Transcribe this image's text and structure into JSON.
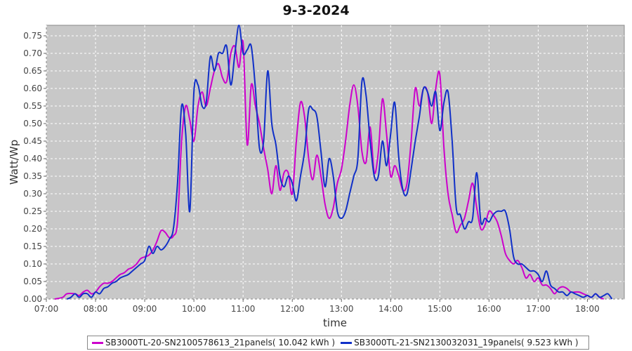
{
  "chart_data": {
    "type": "line",
    "title": "9-3-2024",
    "xlabel": "time",
    "ylabel": "Watt/Wp",
    "xlim": [
      "07:00",
      "18:45"
    ],
    "ylim": [
      0,
      0.78
    ],
    "x_ticks": [
      "07:00",
      "08:00",
      "09:00",
      "10:00",
      "11:00",
      "12:00",
      "13:00",
      "14:00",
      "15:00",
      "16:00",
      "17:00",
      "18:00"
    ],
    "y_ticks": [
      "0.00",
      "0.05",
      "0.10",
      "0.15",
      "0.20",
      "0.25",
      "0.30",
      "0.35",
      "0.40",
      "0.45",
      "0.50",
      "0.55",
      "0.60",
      "0.65",
      "0.70",
      "0.75"
    ],
    "grid": true,
    "background": "#c8c8c8",
    "legend_position": "bottom",
    "series": [
      {
        "name": "SB3000TL-20-SN2100578613_21panels( 10.042 kWh )",
        "color": "#cc00cc",
        "points": [
          [
            "07:10",
            0.0
          ],
          [
            "07:20",
            0.005
          ],
          [
            "07:25",
            0.015
          ],
          [
            "07:35",
            0.015
          ],
          [
            "07:40",
            0.01
          ],
          [
            "07:45",
            0.02
          ],
          [
            "07:50",
            0.025
          ],
          [
            "07:55",
            0.015
          ],
          [
            "08:00",
            0.02
          ],
          [
            "08:05",
            0.035
          ],
          [
            "08:10",
            0.045
          ],
          [
            "08:15",
            0.045
          ],
          [
            "08:20",
            0.05
          ],
          [
            "08:25",
            0.06
          ],
          [
            "08:30",
            0.07
          ],
          [
            "08:35",
            0.075
          ],
          [
            "08:40",
            0.085
          ],
          [
            "08:45",
            0.09
          ],
          [
            "08:50",
            0.1
          ],
          [
            "08:55",
            0.115
          ],
          [
            "09:00",
            0.12
          ],
          [
            "09:05",
            0.125
          ],
          [
            "09:10",
            0.14
          ],
          [
            "09:15",
            0.165
          ],
          [
            "09:20",
            0.195
          ],
          [
            "09:25",
            0.19
          ],
          [
            "09:30",
            0.175
          ],
          [
            "09:35",
            0.18
          ],
          [
            "09:40",
            0.22
          ],
          [
            "09:45",
            0.45
          ],
          [
            "09:50",
            0.55
          ],
          [
            "09:55",
            0.51
          ],
          [
            "10:00",
            0.45
          ],
          [
            "10:05",
            0.55
          ],
          [
            "10:10",
            0.59
          ],
          [
            "10:15",
            0.55
          ],
          [
            "10:20",
            0.6
          ],
          [
            "10:25",
            0.65
          ],
          [
            "10:30",
            0.67
          ],
          [
            "10:35",
            0.63
          ],
          [
            "10:40",
            0.62
          ],
          [
            "10:45",
            0.7
          ],
          [
            "10:50",
            0.72
          ],
          [
            "10:55",
            0.66
          ],
          [
            "11:00",
            0.73
          ],
          [
            "11:05",
            0.44
          ],
          [
            "11:10",
            0.61
          ],
          [
            "11:15",
            0.55
          ],
          [
            "11:20",
            0.5
          ],
          [
            "11:25",
            0.43
          ],
          [
            "11:30",
            0.37
          ],
          [
            "11:35",
            0.3
          ],
          [
            "11:40",
            0.38
          ],
          [
            "11:45",
            0.31
          ],
          [
            "11:50",
            0.36
          ],
          [
            "11:55",
            0.36
          ],
          [
            "12:00",
            0.3
          ],
          [
            "12:05",
            0.45
          ],
          [
            "12:10",
            0.56
          ],
          [
            "12:15",
            0.52
          ],
          [
            "12:20",
            0.4
          ],
          [
            "12:25",
            0.34
          ],
          [
            "12:30",
            0.41
          ],
          [
            "12:35",
            0.35
          ],
          [
            "12:40",
            0.27
          ],
          [
            "12:45",
            0.23
          ],
          [
            "12:50",
            0.26
          ],
          [
            "12:55",
            0.33
          ],
          [
            "13:00",
            0.37
          ],
          [
            "13:05",
            0.45
          ],
          [
            "13:10",
            0.55
          ],
          [
            "13:15",
            0.61
          ],
          [
            "13:20",
            0.55
          ],
          [
            "13:25",
            0.42
          ],
          [
            "13:30",
            0.39
          ],
          [
            "13:35",
            0.49
          ],
          [
            "13:40",
            0.36
          ],
          [
            "13:45",
            0.42
          ],
          [
            "13:50",
            0.57
          ],
          [
            "13:55",
            0.47
          ],
          [
            "14:00",
            0.35
          ],
          [
            "14:05",
            0.38
          ],
          [
            "14:10",
            0.35
          ],
          [
            "14:15",
            0.31
          ],
          [
            "14:20",
            0.33
          ],
          [
            "14:25",
            0.45
          ],
          [
            "14:30",
            0.6
          ],
          [
            "14:35",
            0.55
          ],
          [
            "14:40",
            0.6
          ],
          [
            "14:45",
            0.59
          ],
          [
            "14:50",
            0.5
          ],
          [
            "14:55",
            0.6
          ],
          [
            "15:00",
            0.64
          ],
          [
            "15:05",
            0.43
          ],
          [
            "15:10",
            0.3
          ],
          [
            "15:15",
            0.24
          ],
          [
            "15:20",
            0.19
          ],
          [
            "15:25",
            0.21
          ],
          [
            "15:30",
            0.23
          ],
          [
            "15:35",
            0.28
          ],
          [
            "15:40",
            0.33
          ],
          [
            "15:45",
            0.26
          ],
          [
            "15:50",
            0.2
          ],
          [
            "15:55",
            0.21
          ],
          [
            "16:00",
            0.25
          ],
          [
            "16:05",
            0.24
          ],
          [
            "16:10",
            0.22
          ],
          [
            "16:15",
            0.18
          ],
          [
            "16:20",
            0.13
          ],
          [
            "16:25",
            0.11
          ],
          [
            "16:30",
            0.1
          ],
          [
            "16:35",
            0.11
          ],
          [
            "16:40",
            0.09
          ],
          [
            "16:45",
            0.06
          ],
          [
            "16:50",
            0.07
          ],
          [
            "16:55",
            0.05
          ],
          [
            "17:00",
            0.06
          ],
          [
            "17:05",
            0.04
          ],
          [
            "17:10",
            0.04
          ],
          [
            "17:15",
            0.03
          ],
          [
            "17:20",
            0.015
          ],
          [
            "17:25",
            0.03
          ],
          [
            "17:30",
            0.035
          ],
          [
            "17:35",
            0.03
          ],
          [
            "17:40",
            0.02
          ],
          [
            "17:45",
            0.02
          ],
          [
            "17:50",
            0.02
          ],
          [
            "17:55",
            0.015
          ],
          [
            "18:00",
            0.01
          ],
          [
            "18:05",
            0.005
          ],
          [
            "18:10",
            0.015
          ],
          [
            "18:15",
            0.005
          ],
          [
            "18:20",
            0.0
          ]
        ]
      },
      {
        "name": "SB3000TL-21-SN2130032031_19panels( 9.523 kWh )",
        "color": "#1030c8",
        "points": [
          [
            "07:25",
            0.0
          ],
          [
            "07:30",
            0.005
          ],
          [
            "07:35",
            0.015
          ],
          [
            "07:40",
            0.005
          ],
          [
            "07:45",
            0.015
          ],
          [
            "07:50",
            0.015
          ],
          [
            "07:55",
            0.005
          ],
          [
            "08:00",
            0.02
          ],
          [
            "08:05",
            0.015
          ],
          [
            "08:10",
            0.03
          ],
          [
            "08:15",
            0.035
          ],
          [
            "08:20",
            0.045
          ],
          [
            "08:25",
            0.05
          ],
          [
            "08:30",
            0.06
          ],
          [
            "08:35",
            0.065
          ],
          [
            "08:40",
            0.07
          ],
          [
            "08:45",
            0.08
          ],
          [
            "08:50",
            0.09
          ],
          [
            "08:55",
            0.1
          ],
          [
            "09:00",
            0.11
          ],
          [
            "09:05",
            0.15
          ],
          [
            "09:10",
            0.13
          ],
          [
            "09:15",
            0.15
          ],
          [
            "09:20",
            0.14
          ],
          [
            "09:25",
            0.15
          ],
          [
            "09:30",
            0.17
          ],
          [
            "09:35",
            0.2
          ],
          [
            "09:40",
            0.33
          ],
          [
            "09:45",
            0.55
          ],
          [
            "09:50",
            0.47
          ],
          [
            "09:55",
            0.25
          ],
          [
            "10:00",
            0.59
          ],
          [
            "10:05",
            0.61
          ],
          [
            "10:10",
            0.55
          ],
          [
            "10:15",
            0.56
          ],
          [
            "10:20",
            0.69
          ],
          [
            "10:25",
            0.65
          ],
          [
            "10:30",
            0.7
          ],
          [
            "10:35",
            0.7
          ],
          [
            "10:40",
            0.72
          ],
          [
            "10:45",
            0.61
          ],
          [
            "10:50",
            0.7
          ],
          [
            "10:55",
            0.78
          ],
          [
            "11:00",
            0.7
          ],
          [
            "11:05",
            0.71
          ],
          [
            "11:10",
            0.72
          ],
          [
            "11:15",
            0.6
          ],
          [
            "11:20",
            0.43
          ],
          [
            "11:25",
            0.45
          ],
          [
            "11:30",
            0.65
          ],
          [
            "11:35",
            0.5
          ],
          [
            "11:40",
            0.44
          ],
          [
            "11:45",
            0.35
          ],
          [
            "11:50",
            0.32
          ],
          [
            "11:55",
            0.35
          ],
          [
            "12:00",
            0.33
          ],
          [
            "12:05",
            0.28
          ],
          [
            "12:10",
            0.35
          ],
          [
            "12:15",
            0.42
          ],
          [
            "12:20",
            0.54
          ],
          [
            "12:25",
            0.54
          ],
          [
            "12:30",
            0.52
          ],
          [
            "12:35",
            0.42
          ],
          [
            "12:40",
            0.32
          ],
          [
            "12:45",
            0.4
          ],
          [
            "12:50",
            0.35
          ],
          [
            "12:55",
            0.25
          ],
          [
            "13:00",
            0.23
          ],
          [
            "13:05",
            0.25
          ],
          [
            "13:10",
            0.3
          ],
          [
            "13:15",
            0.35
          ],
          [
            "13:20",
            0.4
          ],
          [
            "13:25",
            0.62
          ],
          [
            "13:30",
            0.58
          ],
          [
            "13:35",
            0.45
          ],
          [
            "13:40",
            0.35
          ],
          [
            "13:45",
            0.35
          ],
          [
            "13:50",
            0.45
          ],
          [
            "13:55",
            0.38
          ],
          [
            "14:00",
            0.47
          ],
          [
            "14:05",
            0.56
          ],
          [
            "14:10",
            0.4
          ],
          [
            "14:15",
            0.31
          ],
          [
            "14:20",
            0.3
          ],
          [
            "14:25",
            0.37
          ],
          [
            "14:30",
            0.45
          ],
          [
            "14:35",
            0.52
          ],
          [
            "14:40",
            0.6
          ],
          [
            "14:45",
            0.59
          ],
          [
            "14:50",
            0.55
          ],
          [
            "14:55",
            0.59
          ],
          [
            "15:00",
            0.48
          ],
          [
            "15:05",
            0.56
          ],
          [
            "15:10",
            0.59
          ],
          [
            "15:15",
            0.45
          ],
          [
            "15:20",
            0.26
          ],
          [
            "15:25",
            0.24
          ],
          [
            "15:30",
            0.2
          ],
          [
            "15:35",
            0.22
          ],
          [
            "15:40",
            0.23
          ],
          [
            "15:45",
            0.36
          ],
          [
            "15:50",
            0.22
          ],
          [
            "15:55",
            0.23
          ],
          [
            "16:00",
            0.22
          ],
          [
            "16:05",
            0.24
          ],
          [
            "16:10",
            0.25
          ],
          [
            "16:15",
            0.25
          ],
          [
            "16:20",
            0.25
          ],
          [
            "16:25",
            0.2
          ],
          [
            "16:30",
            0.12
          ],
          [
            "16:35",
            0.1
          ],
          [
            "16:40",
            0.1
          ],
          [
            "16:45",
            0.09
          ],
          [
            "16:50",
            0.08
          ],
          [
            "16:55",
            0.08
          ],
          [
            "17:00",
            0.07
          ],
          [
            "17:05",
            0.05
          ],
          [
            "17:10",
            0.08
          ],
          [
            "17:15",
            0.04
          ],
          [
            "17:20",
            0.03
          ],
          [
            "17:25",
            0.02
          ],
          [
            "17:30",
            0.02
          ],
          [
            "17:35",
            0.01
          ],
          [
            "17:40",
            0.02
          ],
          [
            "17:45",
            0.015
          ],
          [
            "17:50",
            0.01
          ],
          [
            "17:55",
            0.005
          ],
          [
            "18:00",
            0.01
          ],
          [
            "18:05",
            0.005
          ],
          [
            "18:10",
            0.015
          ],
          [
            "18:15",
            0.005
          ],
          [
            "18:20",
            0.01
          ],
          [
            "18:25",
            0.015
          ],
          [
            "18:30",
            0.0
          ]
        ]
      }
    ]
  }
}
